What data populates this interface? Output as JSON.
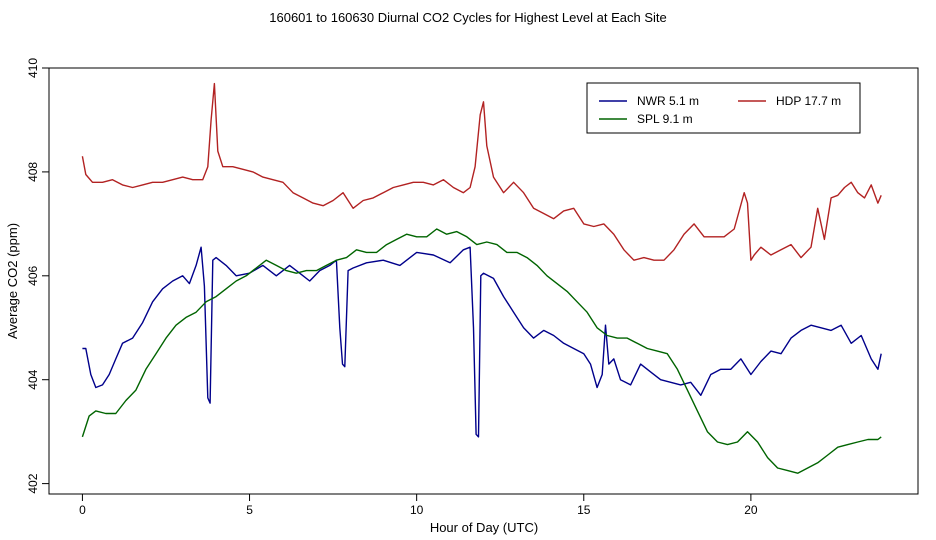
{
  "chart_data": {
    "type": "line",
    "title": "160601  to  160630 Diurnal CO2 Cycles for Highest Level at Each Site",
    "xlabel": "Hour of Day (UTC)",
    "ylabel": "Average CO2 (ppm)",
    "xlim": [
      -1,
      25
    ],
    "ylim": [
      401.8,
      410.0
    ],
    "xticks": [
      0,
      5,
      10,
      15,
      20
    ],
    "xtick_labels": [
      "0",
      "5",
      "10",
      "15",
      "20"
    ],
    "yticks": [
      402,
      404,
      406,
      408,
      410
    ],
    "ytick_labels": [
      "402",
      "404",
      "406",
      "408",
      "410"
    ],
    "grid": false,
    "legend_position": "top-right",
    "series": [
      {
        "name": "NWR",
        "height": "5.1 m",
        "color": "#00008B",
        "x": [
          0,
          0.1,
          0.25,
          0.4,
          0.6,
          0.8,
          1.0,
          1.2,
          1.5,
          1.8,
          2.1,
          2.4,
          2.7,
          3.0,
          3.2,
          3.4,
          3.55,
          3.65,
          3.75,
          3.82,
          3.9,
          4.0,
          4.3,
          4.6,
          5.0,
          5.4,
          5.8,
          6.2,
          6.5,
          6.8,
          7.1,
          7.4,
          7.6,
          7.7,
          7.78,
          7.85,
          7.95,
          8.1,
          8.5,
          9.0,
          9.5,
          10.0,
          10.5,
          11.0,
          11.4,
          11.6,
          11.7,
          11.78,
          11.85,
          11.92,
          12.0,
          12.3,
          12.6,
          12.9,
          13.2,
          13.5,
          13.8,
          14.1,
          14.4,
          14.7,
          15.0,
          15.2,
          15.4,
          15.55,
          15.65,
          15.75,
          15.9,
          16.1,
          16.4,
          16.7,
          17.0,
          17.3,
          17.6,
          17.9,
          18.2,
          18.5,
          18.8,
          19.1,
          19.4,
          19.7,
          20.0,
          20.3,
          20.6,
          20.9,
          21.2,
          21.5,
          21.8,
          22.1,
          22.4,
          22.7,
          23.0,
          23.3,
          23.6,
          23.8,
          23.9
        ],
        "y": [
          404.6,
          404.6,
          404.1,
          403.85,
          403.9,
          404.1,
          404.4,
          404.7,
          404.8,
          405.1,
          405.5,
          405.75,
          405.9,
          406.0,
          405.85,
          406.2,
          406.55,
          405.8,
          403.65,
          403.55,
          406.3,
          406.35,
          406.2,
          406.0,
          406.05,
          406.2,
          406.0,
          406.2,
          406.05,
          405.9,
          406.1,
          406.2,
          406.3,
          405.0,
          404.3,
          404.25,
          406.1,
          406.15,
          406.25,
          406.3,
          406.2,
          406.45,
          406.4,
          406.25,
          406.5,
          406.55,
          405.0,
          402.95,
          402.9,
          406.0,
          406.05,
          405.95,
          405.6,
          405.3,
          405.0,
          404.8,
          404.95,
          404.85,
          404.7,
          404.6,
          404.5,
          404.3,
          403.85,
          404.1,
          405.05,
          404.3,
          404.4,
          404.0,
          403.9,
          404.3,
          404.15,
          404.0,
          403.95,
          403.9,
          403.95,
          403.7,
          404.1,
          404.2,
          404.2,
          404.4,
          404.1,
          404.35,
          404.55,
          404.5,
          404.8,
          404.95,
          405.05,
          405.0,
          404.95,
          405.05,
          404.7,
          404.85,
          404.4,
          404.2,
          404.5
        ]
      },
      {
        "name": "HDP",
        "height": "17.7 m",
        "color": "#B22222",
        "x": [
          0,
          0.1,
          0.3,
          0.6,
          0.9,
          1.2,
          1.5,
          1.8,
          2.1,
          2.4,
          2.7,
          3.0,
          3.3,
          3.6,
          3.75,
          3.85,
          3.95,
          4.05,
          4.2,
          4.5,
          4.8,
          5.1,
          5.4,
          5.7,
          6.0,
          6.3,
          6.6,
          6.9,
          7.2,
          7.5,
          7.8,
          8.1,
          8.4,
          8.7,
          9.0,
          9.3,
          9.6,
          9.9,
          10.2,
          10.5,
          10.8,
          11.1,
          11.4,
          11.6,
          11.75,
          11.9,
          12.0,
          12.1,
          12.3,
          12.6,
          12.9,
          13.2,
          13.5,
          13.8,
          14.1,
          14.4,
          14.7,
          15.0,
          15.3,
          15.6,
          15.9,
          16.2,
          16.5,
          16.8,
          17.1,
          17.4,
          17.7,
          18.0,
          18.3,
          18.6,
          18.9,
          19.2,
          19.5,
          19.8,
          19.9,
          20.0,
          20.1,
          20.3,
          20.6,
          20.9,
          21.2,
          21.5,
          21.8,
          22.0,
          22.2,
          22.4,
          22.6,
          22.8,
          23.0,
          23.2,
          23.4,
          23.6,
          23.8,
          23.9
        ],
        "y": [
          408.3,
          407.95,
          407.8,
          407.8,
          407.85,
          407.75,
          407.7,
          407.75,
          407.8,
          407.8,
          407.85,
          407.9,
          407.85,
          407.85,
          408.1,
          409.0,
          409.7,
          408.4,
          408.1,
          408.1,
          408.05,
          408.0,
          407.9,
          407.85,
          407.8,
          407.6,
          407.5,
          407.4,
          407.35,
          407.45,
          407.6,
          407.3,
          407.45,
          407.5,
          407.6,
          407.7,
          407.75,
          407.8,
          407.8,
          407.75,
          407.85,
          407.7,
          407.6,
          407.7,
          408.1,
          409.1,
          409.35,
          408.5,
          407.9,
          407.6,
          407.8,
          407.6,
          407.3,
          407.2,
          407.1,
          407.25,
          407.3,
          407.0,
          406.95,
          407.0,
          406.8,
          406.5,
          406.3,
          406.35,
          406.3,
          406.3,
          406.5,
          406.8,
          407.0,
          406.75,
          406.75,
          406.75,
          406.9,
          407.6,
          407.4,
          406.3,
          406.4,
          406.55,
          406.4,
          406.5,
          406.6,
          406.35,
          406.55,
          407.3,
          406.7,
          407.5,
          407.55,
          407.7,
          407.8,
          407.6,
          407.5,
          407.75,
          407.4,
          407.55
        ]
      },
      {
        "name": "SPL",
        "height": "9.1 m",
        "color": "#006400",
        "x": [
          0,
          0.2,
          0.4,
          0.7,
          1.0,
          1.3,
          1.6,
          1.9,
          2.2,
          2.5,
          2.8,
          3.1,
          3.4,
          3.7,
          4.0,
          4.3,
          4.6,
          4.9,
          5.2,
          5.5,
          5.8,
          6.1,
          6.4,
          6.7,
          7.0,
          7.3,
          7.6,
          7.9,
          8.2,
          8.5,
          8.8,
          9.1,
          9.4,
          9.7,
          10.0,
          10.3,
          10.6,
          10.9,
          11.2,
          11.5,
          11.8,
          12.1,
          12.4,
          12.7,
          13.0,
          13.3,
          13.6,
          13.9,
          14.2,
          14.5,
          14.8,
          15.1,
          15.4,
          15.7,
          16.0,
          16.3,
          16.6,
          16.9,
          17.2,
          17.5,
          17.8,
          18.1,
          18.4,
          18.7,
          19.0,
          19.3,
          19.6,
          19.9,
          20.2,
          20.5,
          20.8,
          21.1,
          21.4,
          21.7,
          22.0,
          22.3,
          22.6,
          22.9,
          23.2,
          23.5,
          23.8,
          23.9
        ],
        "y": [
          402.9,
          403.3,
          403.4,
          403.35,
          403.35,
          403.6,
          403.8,
          404.2,
          404.5,
          404.8,
          405.05,
          405.2,
          405.3,
          405.5,
          405.6,
          405.75,
          405.9,
          406.0,
          406.15,
          406.3,
          406.2,
          406.1,
          406.05,
          406.1,
          406.1,
          406.2,
          406.3,
          406.35,
          406.5,
          406.45,
          406.45,
          406.6,
          406.7,
          406.8,
          406.75,
          406.75,
          406.9,
          406.8,
          406.85,
          406.75,
          406.6,
          406.65,
          406.6,
          406.45,
          406.45,
          406.35,
          406.2,
          406.0,
          405.85,
          405.7,
          405.5,
          405.3,
          405.0,
          404.85,
          404.8,
          404.8,
          404.7,
          404.6,
          404.55,
          404.5,
          404.2,
          403.8,
          403.4,
          403.0,
          402.8,
          402.75,
          402.8,
          403.0,
          402.8,
          402.5,
          402.3,
          402.25,
          402.2,
          402.3,
          402.4,
          402.55,
          402.7,
          402.75,
          402.8,
          402.85,
          402.85,
          402.9
        ]
      }
    ]
  }
}
